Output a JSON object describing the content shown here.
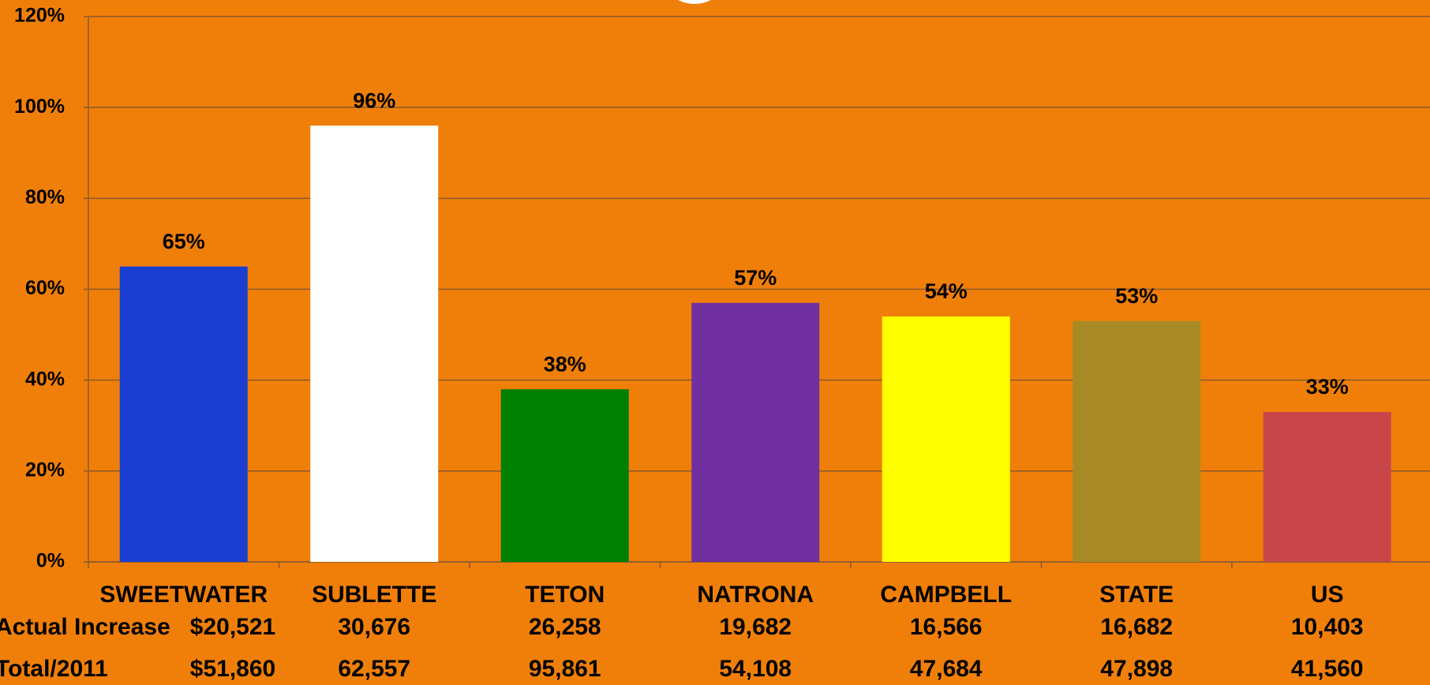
{
  "chart_data": {
    "type": "bar",
    "categories": [
      "SWEETWATER",
      "SUBLETTE",
      "TETON",
      "NATRONA",
      "CAMPBELL",
      "STATE",
      "US"
    ],
    "values": [
      65,
      96,
      38,
      57,
      54,
      53,
      33
    ],
    "value_labels": [
      "65%",
      "96%",
      "38%",
      "57%",
      "54%",
      "53%",
      "33%"
    ],
    "colors": [
      "#1a3fd0",
      "#ffffff",
      "#008000",
      "#7030a0",
      "#ffff00",
      "#a88a24",
      "#c8464a"
    ],
    "ylim": [
      0,
      120
    ],
    "yticks": [
      {
        "value": 0,
        "label": "0%"
      },
      {
        "value": 20,
        "label": "20%"
      },
      {
        "value": 40,
        "label": "40%"
      },
      {
        "value": 60,
        "label": "60%"
      },
      {
        "value": 80,
        "label": "80%"
      },
      {
        "value": 100,
        "label": "100%"
      },
      {
        "value": 120,
        "label": "120%"
      }
    ],
    "grid": true
  },
  "table": {
    "rows": [
      {
        "label": "Actual Increase",
        "values": [
          "$20,521",
          "30,676",
          "26,258",
          "19,682",
          "16,566",
          "16,682",
          "10,403"
        ]
      },
      {
        "label": "Total/2011",
        "values": [
          "$51,860",
          "62,557",
          "95,861",
          "54,108",
          "47,684",
          "47,898",
          "41,560"
        ]
      }
    ]
  }
}
